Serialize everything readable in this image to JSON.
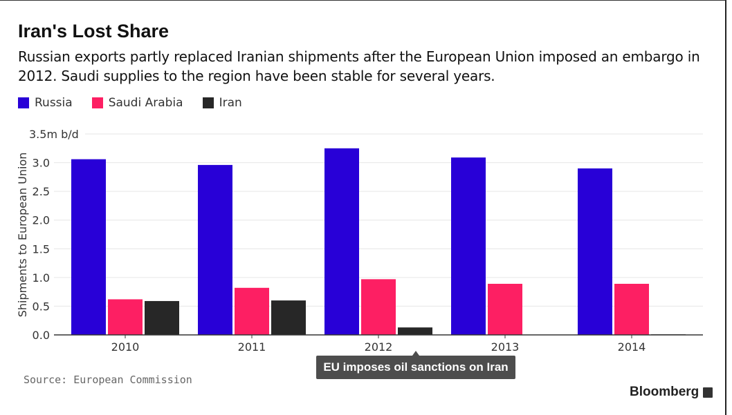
{
  "title": "Iran's Lost Share",
  "subtitle": "Russian exports partly replaced Iranian shipments after the European Union imposed an embargo in 2012. Saudi supplies to the region have been stable for several years.",
  "source": "Source: European Commission",
  "brand": "Bloomberg",
  "chart_data": {
    "type": "bar",
    "categories": [
      "2010",
      "2011",
      "2012",
      "2013",
      "2014"
    ],
    "series": [
      {
        "name": "Russia",
        "color": "#2800d7",
        "values": [
          3.06,
          2.96,
          3.25,
          3.09,
          2.9
        ]
      },
      {
        "name": "Saudi Arabia",
        "color": "#fd1f63",
        "values": [
          0.62,
          0.82,
          0.97,
          0.89,
          0.89
        ]
      },
      {
        "name": "Iran",
        "color": "#272727",
        "values": [
          0.59,
          0.6,
          0.13,
          0.0,
          0.01
        ]
      }
    ],
    "ylabel": "Shipments to European Union",
    "yunit_label": "3.5m b/d",
    "yticks": [
      "0.0",
      "0.5",
      "1.0",
      "1.5",
      "2.0",
      "2.5",
      "3.0"
    ],
    "ylim": [
      0,
      3.5
    ],
    "grid": true,
    "legend": "top-left",
    "annotation": {
      "category": "2012",
      "text": "EU imposes oil sanctions on Iran"
    }
  }
}
